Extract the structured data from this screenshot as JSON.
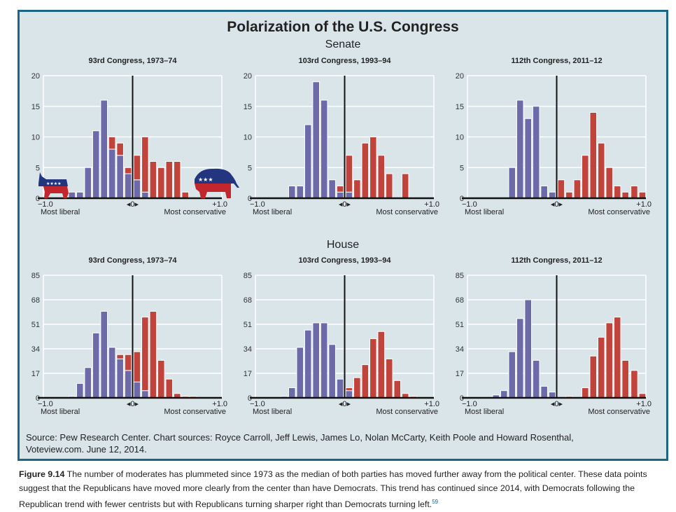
{
  "title": "Polarization of the U.S. Congress",
  "senate_label": "Senate",
  "house_label": "House",
  "source": [
    "Source: Pew Research Center. Chart sources: Royce Carroll, Jeff Lewis, James Lo, Nolan McCarty, Keith Poole and Howard Rosenthal,",
    "Voteview.com. June 12, 2014."
  ],
  "caption": {
    "figure_label": "Figure 9.14",
    "text": " The number of moderates has plummeted since 1973 as the median of both parties has moved further away from the political center. These data points suggest that the Republicans have moved more clearly from the center than have Democrats. This trend has continued since 2014, with Democrats following the Republican trend with fewer centrists but with Republicans turning sharper right than Democrats turning left.",
    "footnote": "59"
  },
  "colors": {
    "democrat": "#6c6aa8",
    "republican": "#c0433c",
    "background": "#dae5e9",
    "border": "#1c6586"
  },
  "x_axis": {
    "left_tick": "−1.0",
    "right_tick": "+1.0",
    "center_tick": "◂0▸",
    "left_label": "Most liberal",
    "right_label": "Most conservative"
  },
  "icons": [
    "democratic-donkey-icon",
    "republican-elephant-icon"
  ],
  "chart_data": [
    {
      "chamber": "Senate",
      "title": "93rd Congress, 1973–74",
      "type": "bar",
      "stacked": true,
      "xlim": [
        -1,
        1
      ],
      "ylim": [
        0,
        20
      ],
      "yticks": [
        0,
        5,
        10,
        15,
        20
      ],
      "grid": true,
      "bins": [
        {
          "x": -0.68,
          "dem": 1,
          "rep": 0
        },
        {
          "x": -0.59,
          "dem": 1,
          "rep": 0
        },
        {
          "x": -0.5,
          "dem": 5,
          "rep": 0
        },
        {
          "x": -0.41,
          "dem": 11,
          "rep": 0
        },
        {
          "x": -0.32,
          "dem": 16,
          "rep": 0
        },
        {
          "x": -0.23,
          "dem": 8,
          "rep": 2
        },
        {
          "x": -0.14,
          "dem": 7,
          "rep": 2
        },
        {
          "x": -0.05,
          "dem": 4,
          "rep": 1
        },
        {
          "x": 0.05,
          "dem": 3,
          "rep": 4
        },
        {
          "x": 0.14,
          "dem": 1,
          "rep": 9
        },
        {
          "x": 0.23,
          "dem": 0,
          "rep": 6
        },
        {
          "x": 0.32,
          "dem": 0,
          "rep": 5
        },
        {
          "x": 0.41,
          "dem": 0,
          "rep": 6
        },
        {
          "x": 0.5,
          "dem": 0,
          "rep": 6
        },
        {
          "x": 0.59,
          "dem": 0,
          "rep": 1
        }
      ]
    },
    {
      "chamber": "Senate",
      "title": "103rd Congress, 1993–94",
      "type": "bar",
      "stacked": true,
      "xlim": [
        -1,
        1
      ],
      "ylim": [
        0,
        20
      ],
      "yticks": [
        0,
        5,
        10,
        15,
        20
      ],
      "grid": true,
      "bins": [
        {
          "x": -0.59,
          "dem": 2,
          "rep": 0
        },
        {
          "x": -0.5,
          "dem": 2,
          "rep": 0
        },
        {
          "x": -0.41,
          "dem": 12,
          "rep": 0
        },
        {
          "x": -0.32,
          "dem": 19,
          "rep": 0
        },
        {
          "x": -0.23,
          "dem": 16,
          "rep": 0
        },
        {
          "x": -0.14,
          "dem": 3,
          "rep": 0
        },
        {
          "x": -0.05,
          "dem": 1,
          "rep": 1
        },
        {
          "x": 0.05,
          "dem": 1,
          "rep": 6
        },
        {
          "x": 0.14,
          "dem": 0,
          "rep": 3
        },
        {
          "x": 0.23,
          "dem": 0,
          "rep": 9
        },
        {
          "x": 0.32,
          "dem": 0,
          "rep": 10
        },
        {
          "x": 0.41,
          "dem": 0,
          "rep": 7
        },
        {
          "x": 0.5,
          "dem": 0,
          "rep": 4
        },
        {
          "x": 0.68,
          "dem": 0,
          "rep": 4
        }
      ]
    },
    {
      "chamber": "Senate",
      "title": "112th Congress, 2011–12",
      "type": "bar",
      "stacked": true,
      "xlim": [
        -1,
        1
      ],
      "ylim": [
        0,
        20
      ],
      "yticks": [
        0,
        5,
        10,
        15,
        20
      ],
      "grid": true,
      "bins": [
        {
          "x": -0.5,
          "dem": 5,
          "rep": 0
        },
        {
          "x": -0.41,
          "dem": 16,
          "rep": 0
        },
        {
          "x": -0.32,
          "dem": 13,
          "rep": 0
        },
        {
          "x": -0.23,
          "dem": 15,
          "rep": 0
        },
        {
          "x": -0.14,
          "dem": 2,
          "rep": 0
        },
        {
          "x": -0.05,
          "dem": 1,
          "rep": 0
        },
        {
          "x": 0.05,
          "dem": 0,
          "rep": 3
        },
        {
          "x": 0.14,
          "dem": 0,
          "rep": 1
        },
        {
          "x": 0.23,
          "dem": 0,
          "rep": 3
        },
        {
          "x": 0.32,
          "dem": 0,
          "rep": 7
        },
        {
          "x": 0.41,
          "dem": 0,
          "rep": 14
        },
        {
          "x": 0.5,
          "dem": 0,
          "rep": 9
        },
        {
          "x": 0.59,
          "dem": 0,
          "rep": 5
        },
        {
          "x": 0.68,
          "dem": 0,
          "rep": 2
        },
        {
          "x": 0.77,
          "dem": 0,
          "rep": 1
        },
        {
          "x": 0.87,
          "dem": 0,
          "rep": 2
        },
        {
          "x": 0.96,
          "dem": 0,
          "rep": 1
        }
      ]
    },
    {
      "chamber": "House",
      "title": "93rd Congress, 1973–74",
      "type": "bar",
      "stacked": true,
      "xlim": [
        -1,
        1
      ],
      "ylim": [
        0,
        85
      ],
      "yticks": [
        0,
        17,
        34,
        51,
        68,
        85
      ],
      "grid": true,
      "bins": [
        {
          "x": -0.68,
          "dem": 1,
          "rep": 0
        },
        {
          "x": -0.59,
          "dem": 10,
          "rep": 0
        },
        {
          "x": -0.5,
          "dem": 21,
          "rep": 0
        },
        {
          "x": -0.41,
          "dem": 45,
          "rep": 0
        },
        {
          "x": -0.32,
          "dem": 60,
          "rep": 0
        },
        {
          "x": -0.23,
          "dem": 35,
          "rep": 0
        },
        {
          "x": -0.14,
          "dem": 27,
          "rep": 3
        },
        {
          "x": -0.05,
          "dem": 19,
          "rep": 11
        },
        {
          "x": 0.05,
          "dem": 11,
          "rep": 21
        },
        {
          "x": 0.14,
          "dem": 5,
          "rep": 51
        },
        {
          "x": 0.23,
          "dem": 0,
          "rep": 60
        },
        {
          "x": 0.32,
          "dem": 0,
          "rep": 26
        },
        {
          "x": 0.41,
          "dem": 0,
          "rep": 13
        },
        {
          "x": 0.5,
          "dem": 0,
          "rep": 3
        },
        {
          "x": 0.59,
          "dem": 0,
          "rep": 1
        },
        {
          "x": 0.68,
          "dem": 0,
          "rep": 1
        }
      ]
    },
    {
      "chamber": "House",
      "title": "103rd Congress, 1993–94",
      "type": "bar",
      "stacked": true,
      "xlim": [
        -1,
        1
      ],
      "ylim": [
        0,
        85
      ],
      "yticks": [
        0,
        17,
        34,
        51,
        68,
        85
      ],
      "grid": true,
      "bins": [
        {
          "x": -0.68,
          "dem": 1,
          "rep": 0
        },
        {
          "x": -0.59,
          "dem": 7,
          "rep": 0
        },
        {
          "x": -0.5,
          "dem": 35,
          "rep": 0
        },
        {
          "x": -0.41,
          "dem": 47,
          "rep": 0
        },
        {
          "x": -0.32,
          "dem": 52,
          "rep": 0
        },
        {
          "x": -0.23,
          "dem": 52,
          "rep": 0
        },
        {
          "x": -0.14,
          "dem": 37,
          "rep": 0
        },
        {
          "x": -0.05,
          "dem": 13,
          "rep": 0
        },
        {
          "x": 0.05,
          "dem": 5,
          "rep": 2
        },
        {
          "x": 0.14,
          "dem": 0,
          "rep": 14
        },
        {
          "x": 0.23,
          "dem": 0,
          "rep": 23
        },
        {
          "x": 0.32,
          "dem": 0,
          "rep": 41
        },
        {
          "x": 0.41,
          "dem": 0,
          "rep": 46
        },
        {
          "x": 0.5,
          "dem": 0,
          "rep": 27
        },
        {
          "x": 0.59,
          "dem": 0,
          "rep": 12
        },
        {
          "x": 0.68,
          "dem": 0,
          "rep": 3
        },
        {
          "x": 0.77,
          "dem": 0,
          "rep": 1
        }
      ]
    },
    {
      "chamber": "House",
      "title": "112th Congress, 2011–12",
      "type": "bar",
      "stacked": true,
      "xlim": [
        -1,
        1
      ],
      "ylim": [
        0,
        85
      ],
      "yticks": [
        0,
        17,
        34,
        51,
        68,
        85
      ],
      "grid": true,
      "bins": [
        {
          "x": -0.68,
          "dem": 2,
          "rep": 0
        },
        {
          "x": -0.59,
          "dem": 5,
          "rep": 0
        },
        {
          "x": -0.5,
          "dem": 32,
          "rep": 0
        },
        {
          "x": -0.41,
          "dem": 55,
          "rep": 0
        },
        {
          "x": -0.32,
          "dem": 68,
          "rep": 0
        },
        {
          "x": -0.23,
          "dem": 26,
          "rep": 0
        },
        {
          "x": -0.14,
          "dem": 8,
          "rep": 0
        },
        {
          "x": -0.05,
          "dem": 4,
          "rep": 0
        },
        {
          "x": 0.14,
          "dem": 0,
          "rep": 1
        },
        {
          "x": 0.32,
          "dem": 0,
          "rep": 7
        },
        {
          "x": 0.41,
          "dem": 0,
          "rep": 29
        },
        {
          "x": 0.5,
          "dem": 0,
          "rep": 42
        },
        {
          "x": 0.59,
          "dem": 0,
          "rep": 52
        },
        {
          "x": 0.68,
          "dem": 0,
          "rep": 56
        },
        {
          "x": 0.77,
          "dem": 0,
          "rep": 26
        },
        {
          "x": 0.87,
          "dem": 0,
          "rep": 19
        },
        {
          "x": 0.96,
          "dem": 0,
          "rep": 3
        }
      ]
    }
  ]
}
